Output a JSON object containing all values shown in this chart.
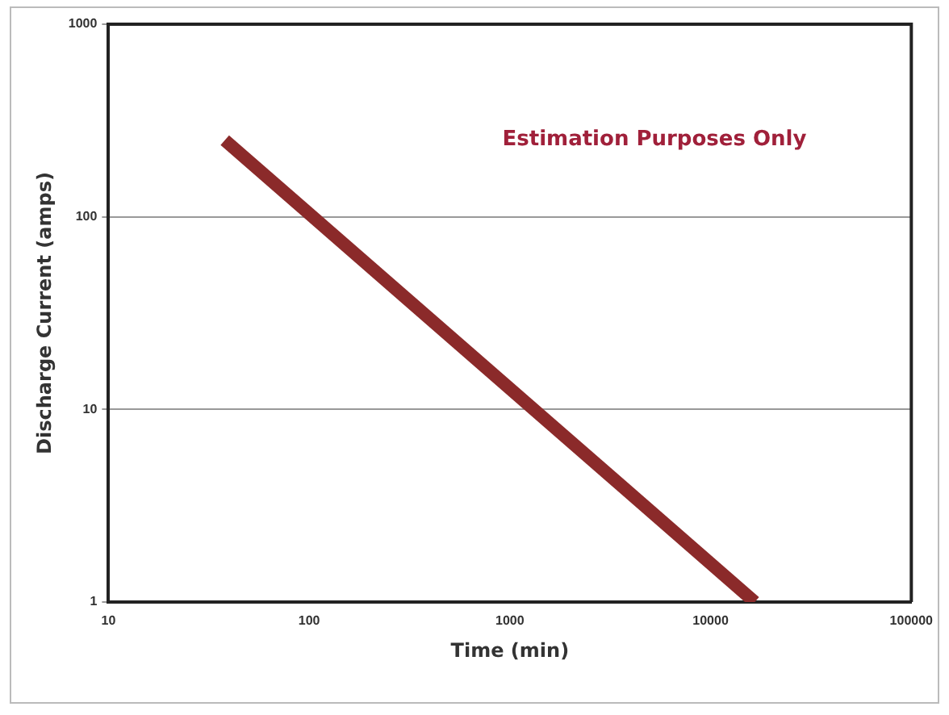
{
  "chart_data": {
    "type": "line",
    "xlabel": "Time (min)",
    "ylabel": "Discharge Current (amps)",
    "annotations": [
      "Estimation Purposes Only"
    ],
    "x": [
      38,
      16600
    ],
    "series": [
      {
        "color": "#8b2a2a",
        "values": [
          250,
          1
        ]
      }
    ],
    "log": "xy",
    "xlim": [
      10,
      100000
    ],
    "xticks": [
      10,
      100,
      1000,
      10000,
      100000
    ],
    "ylim": [
      1,
      1000
    ],
    "yticks": [
      1,
      10,
      100,
      1000
    ],
    "grid": "y",
    "legend": false,
    "marker": "none",
    "line_style": "solid"
  }
}
